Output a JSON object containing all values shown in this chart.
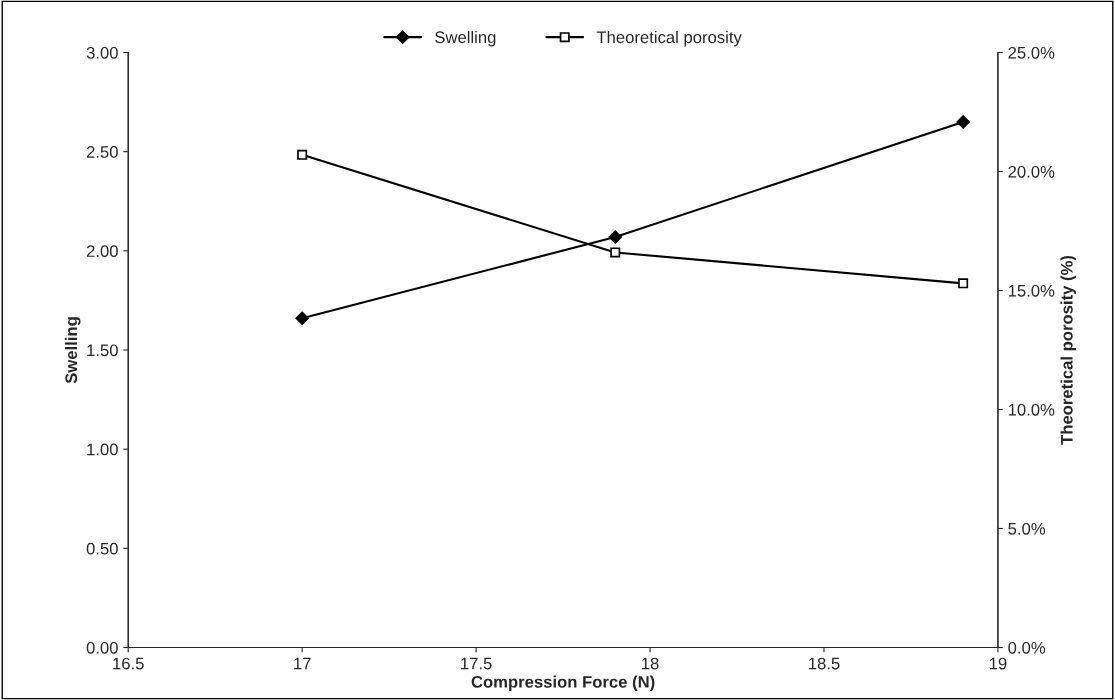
{
  "chart_data": {
    "type": "line",
    "xlabel": "Compression Force (N)",
    "ylabel": "Swelling",
    "y2label": "Theoretical porosity (%)",
    "xlim": [
      16.5,
      19
    ],
    "xticks": [
      16.5,
      17,
      17.5,
      18,
      18.5,
      19
    ],
    "ylim": [
      0,
      3
    ],
    "yticks": [
      {
        "value": 0,
        "label": "0.00"
      },
      {
        "value": 0.5,
        "label": "0.50"
      },
      {
        "value": 1,
        "label": "1.00"
      },
      {
        "value": 1.5,
        "label": "1.50"
      },
      {
        "value": 2,
        "label": "2.00"
      },
      {
        "value": 2.5,
        "label": "2.50"
      },
      {
        "value": 3,
        "label": "3.00"
      }
    ],
    "y2lim": [
      0,
      25
    ],
    "y2ticks": [
      {
        "value": 0,
        "label": "0.0%"
      },
      {
        "value": 5,
        "label": "5.0%"
      },
      {
        "value": 10,
        "label": "10.0%"
      },
      {
        "value": 15,
        "label": "15.0%"
      },
      {
        "value": 20,
        "label": "20.0%"
      },
      {
        "value": 25,
        "label": "25.0%"
      }
    ],
    "x": [
      17,
      17.9,
      18.9
    ],
    "grid": false,
    "legend": "top",
    "series": [
      {
        "name": "Swelling",
        "color": "#000000",
        "marker": "diamond",
        "values": [
          1.66,
          2.07,
          2.65
        ]
      },
      {
        "name": "Theoretical porosity",
        "color": "#000000",
        "marker": "square",
        "axis": "y2",
        "values": [
          20.7,
          16.6,
          15.3
        ]
      }
    ]
  }
}
